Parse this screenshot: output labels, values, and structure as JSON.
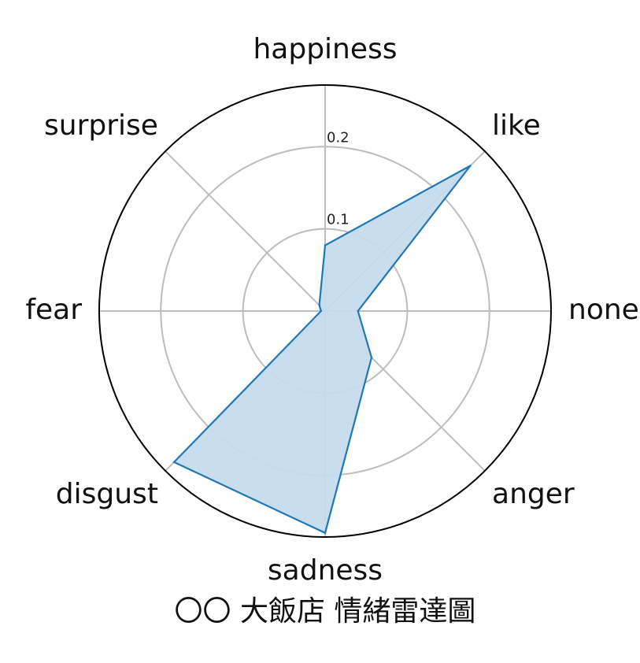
{
  "chart_data": {
    "type": "radar",
    "title": "〇〇 大飯店 情緒雷達圖",
    "categories": [
      "none",
      "like",
      "happiness",
      "surprise",
      "fear",
      "disgust",
      "sadness",
      "anger"
    ],
    "series": [
      {
        "values": [
          0.04,
          0.25,
          0.08,
          0.01,
          0.005,
          0.26,
          0.27,
          0.08
        ]
      }
    ],
    "rticks": [
      0.1,
      0.2
    ],
    "rlim": [
      0,
      0.275
    ],
    "gridlines": true,
    "colors": {
      "line": "#1f77b4",
      "fill": "#c5dbed",
      "grid": "#bdbdbd",
      "frame": "#000000"
    }
  }
}
